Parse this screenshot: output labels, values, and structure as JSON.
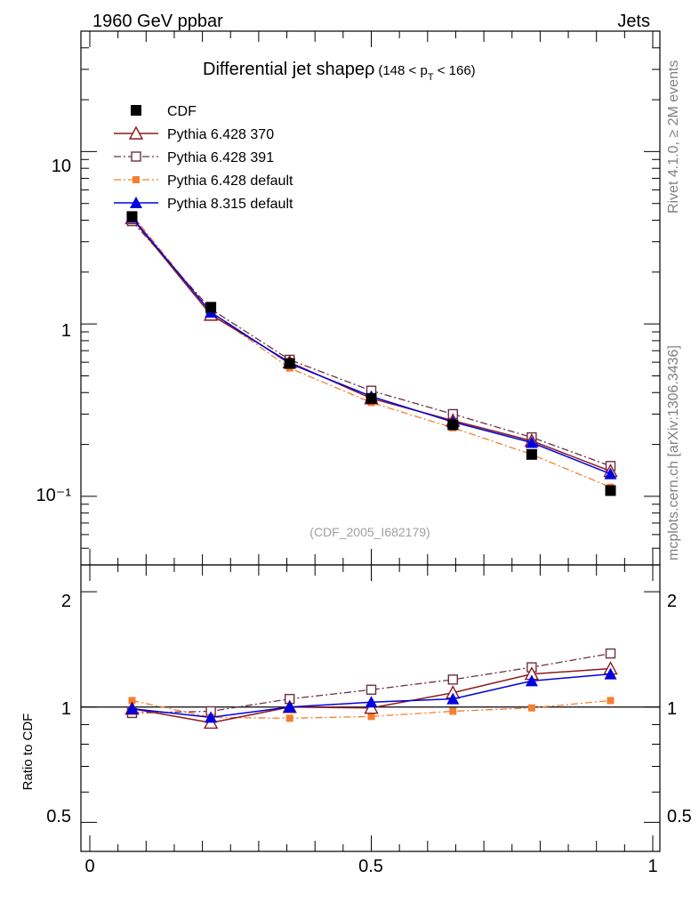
{
  "header": {
    "left": "1960 GeV ppbar",
    "right": "Jets"
  },
  "side": {
    "rivet": "Rivet 4.1.0, ≥ 2M events",
    "mcplots": "mcplots.cern.ch [arXiv:1306.3436]"
  },
  "colors": {
    "cdf": "#000000",
    "p370": "#8b1a1a",
    "p391": "#6b3045",
    "p6def": "#f47f2f",
    "p8def": "#0000e0"
  },
  "chart_data": [
    {
      "type": "line",
      "title": "Differential jet shapeρ",
      "title_range": "(148 < p_T < 166)",
      "title_pre": "(148 < p",
      "title_sub": "T",
      "title_post": " < 166)",
      "watermark": "(CDF_2005_I682179)",
      "yscale": "log",
      "ylim": [
        0.04,
        50
      ],
      "xlim": [
        0,
        1
      ],
      "ytick_labels": [
        "10",
        "1",
        "10⁻¹"
      ],
      "x": [
        0.075,
        0.215,
        0.355,
        0.5,
        0.645,
        0.785,
        0.925
      ],
      "series": [
        {
          "name": "CDF",
          "key": "cdf",
          "values": [
            4.2,
            1.25,
            0.59,
            0.37,
            0.26,
            0.175,
            0.108
          ]
        },
        {
          "name": "Pythia 6.428 370",
          "key": "p370",
          "values": [
            4.1,
            1.13,
            0.6,
            0.37,
            0.275,
            0.21,
            0.14
          ]
        },
        {
          "name": "Pythia 6.428 391",
          "key": "p391",
          "values": [
            3.95,
            1.22,
            0.62,
            0.41,
            0.3,
            0.22,
            0.15
          ]
        },
        {
          "name": "Pythia 6.428 default",
          "key": "p6def",
          "values": [
            4.3,
            1.17,
            0.555,
            0.35,
            0.25,
            0.175,
            0.113
          ]
        },
        {
          "name": "Pythia 8.315 default",
          "key": "p8def",
          "values": [
            4.15,
            1.17,
            0.59,
            0.38,
            0.27,
            0.205,
            0.135
          ]
        }
      ]
    },
    {
      "type": "line",
      "ylabel": "Ratio to CDF",
      "yscale": "log",
      "ylim": [
        0.42,
        2.35
      ],
      "xlim": [
        0,
        1
      ],
      "ytick_labels": [
        "2",
        "1",
        "0.5"
      ],
      "xtick_labels": [
        "0",
        "0.5",
        "1"
      ],
      "x": [
        0.075,
        0.215,
        0.355,
        0.5,
        0.645,
        0.785,
        0.925
      ],
      "series": [
        {
          "name": "Pythia 6.428 370",
          "key": "p370",
          "values": [
            0.99,
            0.91,
            1.0,
            0.995,
            1.09,
            1.22,
            1.26
          ]
        },
        {
          "name": "Pythia 6.428 391",
          "key": "p391",
          "values": [
            0.965,
            0.975,
            1.05,
            1.11,
            1.18,
            1.27,
            1.38
          ]
        },
        {
          "name": "Pythia 6.428 default",
          "key": "p6def",
          "values": [
            1.04,
            0.94,
            0.935,
            0.945,
            0.975,
            0.995,
            1.04
          ]
        },
        {
          "name": "Pythia 8.315 default",
          "key": "p8def",
          "values": [
            0.99,
            0.94,
            1.0,
            1.03,
            1.05,
            1.17,
            1.22
          ]
        }
      ]
    }
  ]
}
